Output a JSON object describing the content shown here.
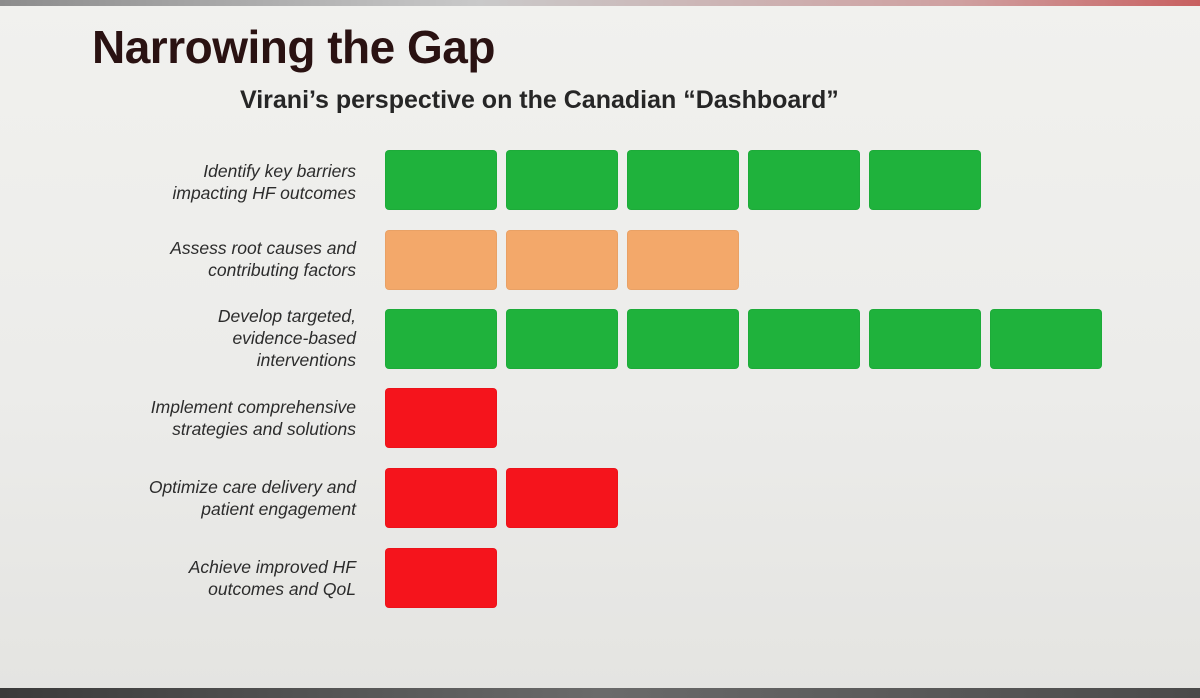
{
  "slide": {
    "title": "Narrowing the Gap",
    "subtitle": "Virani’s perspective on the Canadian “Dashboard”"
  },
  "colors": {
    "green": "#1fb23c",
    "orange": "#f3a86a",
    "red": "#f5141c"
  },
  "rows": [
    {
      "label": "Identify key barriers\nimpacting HF outcomes",
      "status": "green",
      "level": 5
    },
    {
      "label": "Assess root causes and\ncontributing factors",
      "status": "orange",
      "level": 3
    },
    {
      "label": "Develop targeted,\nevidence-based\ninterventions",
      "status": "green",
      "level": 6
    },
    {
      "label": "Implement comprehensive\nstrategies and solutions",
      "status": "red",
      "level": 1
    },
    {
      "label": "Optimize care delivery and\npatient engagement",
      "status": "red",
      "level": 2
    },
    {
      "label": "Achieve improved HF\noutcomes and QoL",
      "status": "red",
      "level": 1
    }
  ]
}
